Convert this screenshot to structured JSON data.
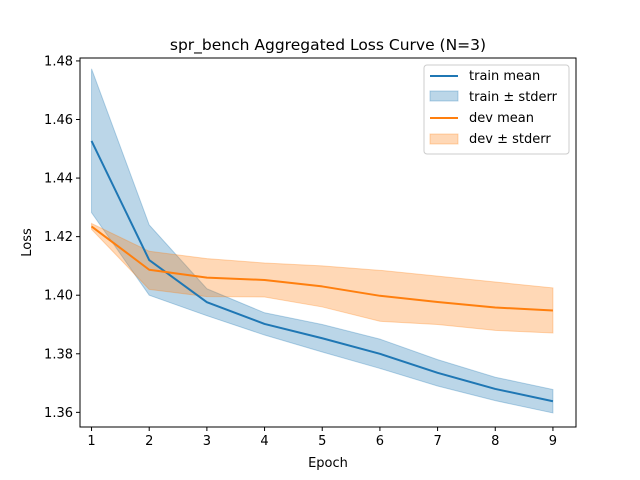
{
  "chart_data": {
    "type": "line",
    "title": "spr_bench Aggregated Loss Curve (N=3)",
    "xlabel": "Epoch",
    "ylabel": "Loss",
    "x": [
      1,
      2,
      3,
      4,
      5,
      6,
      7,
      8,
      9
    ],
    "xlim": [
      0.8,
      9.4
    ],
    "ylim": [
      1.355,
      1.481
    ],
    "xticks": [
      1,
      2,
      3,
      4,
      5,
      6,
      7,
      8,
      9
    ],
    "yticks": [
      1.36,
      1.38,
      1.4,
      1.42,
      1.44,
      1.46,
      1.48
    ],
    "xtick_labels": [
      "1",
      "2",
      "3",
      "4",
      "5",
      "6",
      "7",
      "8",
      "9"
    ],
    "ytick_labels": [
      "1.36",
      "1.38",
      "1.40",
      "1.42",
      "1.44",
      "1.46",
      "1.48"
    ],
    "grid": false,
    "legend_position": "top-right",
    "series": [
      {
        "name": "train mean",
        "band_name": "train ± stderr",
        "color": "#1f77b4",
        "mean": [
          1.4527,
          1.412,
          1.3976,
          1.3902,
          1.3853,
          1.38,
          1.3735,
          1.368,
          1.3638
        ],
        "upper": [
          1.4773,
          1.424,
          1.4022,
          1.394,
          1.39,
          1.385,
          1.378,
          1.372,
          1.3678
        ],
        "lower": [
          1.4282,
          1.4,
          1.393,
          1.3864,
          1.3806,
          1.375,
          1.369,
          1.364,
          1.3598
        ]
      },
      {
        "name": "dev mean",
        "band_name": "dev ± stderr",
        "color": "#ff7f0e",
        "mean": [
          1.4235,
          1.4087,
          1.406,
          1.4052,
          1.403,
          1.3998,
          1.3977,
          1.3958,
          1.3948
        ],
        "upper": [
          1.4245,
          1.415,
          1.4125,
          1.411,
          1.41,
          1.4085,
          1.4065,
          1.4045,
          1.4025
        ],
        "lower": [
          1.4225,
          1.402,
          1.3995,
          1.3994,
          1.396,
          1.3911,
          1.39,
          1.388,
          1.3871
        ]
      }
    ]
  }
}
